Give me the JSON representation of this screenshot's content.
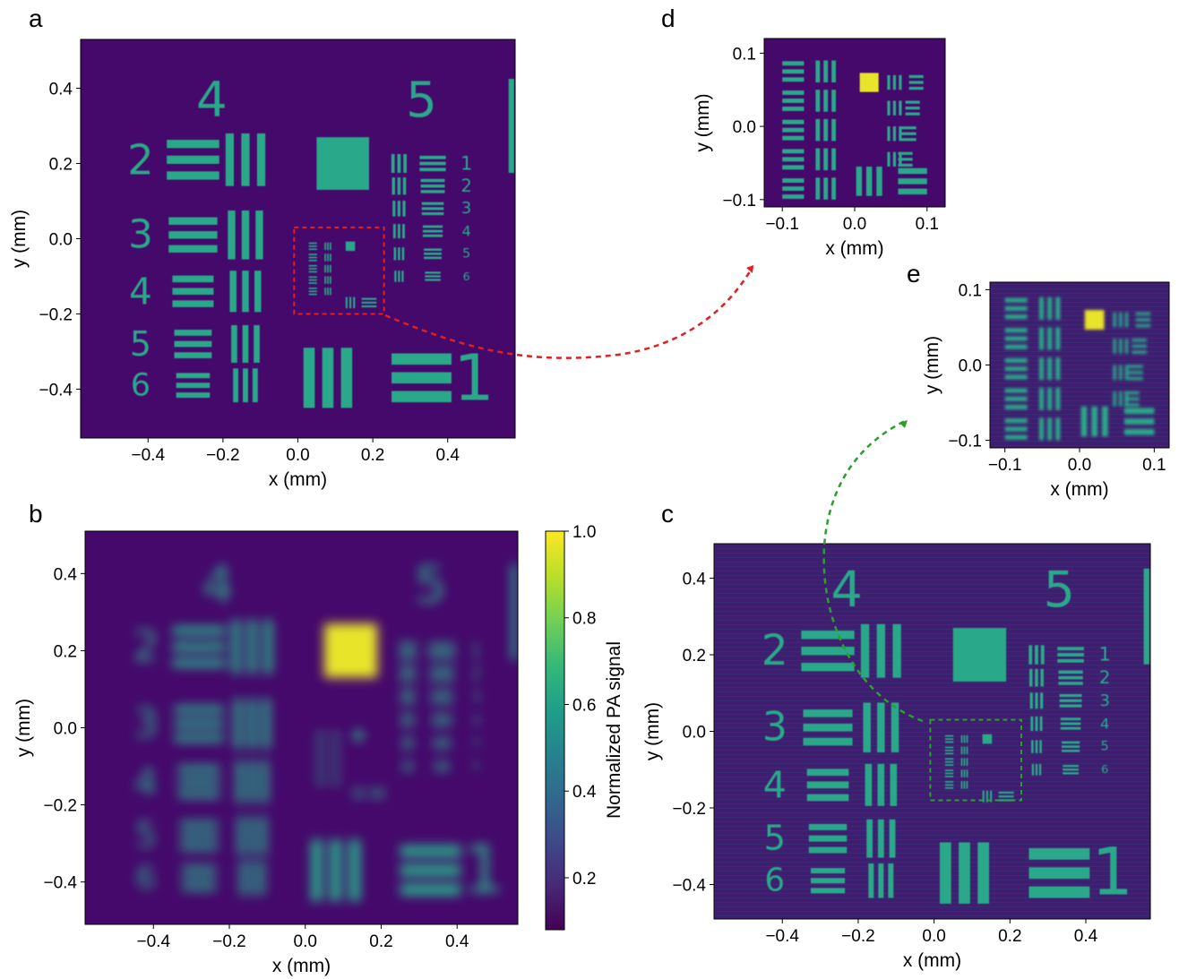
{
  "colors": {
    "background": "#45086b",
    "background_alt": "#3d1d6f",
    "bar_fill": "#2aa98a",
    "highlight": "#e8e429",
    "zoom_box_a": "#e02020",
    "zoom_box_c": "#2aa02a",
    "colormap": [
      "#440154",
      "#482878",
      "#3e4989",
      "#31688e",
      "#26828e",
      "#1f9e89",
      "#35b779",
      "#6ece58",
      "#b5de2b",
      "#fde725"
    ]
  },
  "target": {
    "group_labels": [
      "4",
      "5"
    ],
    "element_labels": [
      "1",
      "2",
      "3",
      "4",
      "5",
      "6"
    ]
  },
  "chart_data": [
    {
      "panel": "a",
      "type": "heatmap",
      "title": "",
      "xlabel": "x (mm)",
      "ylabel": "y (mm)",
      "xlim": [
        -0.58,
        0.58
      ],
      "ylim": [
        -0.53,
        0.53
      ],
      "xticks": [
        "−0.4",
        "−0.2",
        "0.0",
        "0.2",
        "0.4"
      ],
      "yticks": [
        "0.4",
        "0.2",
        "0.0",
        "−0.2",
        "−0.4"
      ],
      "zoom_box": {
        "x": [
          -0.01,
          0.23
        ],
        "y": [
          -0.2,
          0.03
        ]
      },
      "colorbar": null
    },
    {
      "panel": "b",
      "type": "heatmap",
      "title": "",
      "xlabel": "x (mm)",
      "ylabel": "y (mm)",
      "xlim": [
        -0.58,
        0.56
      ],
      "ylim": [
        -0.51,
        0.51
      ],
      "xticks": [
        "−0.4",
        "−0.2",
        "0.0",
        "0.2",
        "0.4"
      ],
      "yticks": [
        "0.4",
        "0.2",
        "0.0",
        "−0.2",
        "−0.4"
      ],
      "colorbar": {
        "label": "Normalized PA signal",
        "range": [
          0.08,
          1.0
        ],
        "ticks": [
          "1.0",
          "0.8",
          "0.6",
          "0.4",
          "0.2"
        ]
      }
    },
    {
      "panel": "c",
      "type": "heatmap",
      "title": "",
      "xlabel": "x (mm)",
      "ylabel": "y (mm)",
      "xlim": [
        -0.58,
        0.57
      ],
      "ylim": [
        -0.49,
        0.49
      ],
      "xticks": [
        "−0.4",
        "−0.2",
        "0.0",
        "0.2",
        "0.4"
      ],
      "yticks": [
        "0.4",
        "0.2",
        "0.0",
        "−0.2",
        "−0.4"
      ],
      "zoom_box": {
        "x": [
          -0.01,
          0.23
        ],
        "y": [
          -0.18,
          0.03
        ]
      },
      "colorbar": null
    },
    {
      "panel": "d",
      "type": "heatmap",
      "title": "",
      "xlabel": "x (mm)",
      "ylabel": "y (mm)",
      "xlim": [
        -0.125,
        0.125
      ],
      "ylim": [
        -0.11,
        0.12
      ],
      "xticks": [
        "−0.1",
        "0.0",
        "0.1"
      ],
      "yticks": [
        "0.1",
        "0.0",
        "−0.1"
      ],
      "colorbar": null
    },
    {
      "panel": "e",
      "type": "heatmap",
      "title": "",
      "xlabel": "x (mm)",
      "ylabel": "y (mm)",
      "xlim": [
        -0.12,
        0.12
      ],
      "ylim": [
        -0.11,
        0.11
      ],
      "xticks": [
        "−0.1",
        "0.0",
        "0.1"
      ],
      "yticks": [
        "0.1",
        "0.0",
        "−0.1"
      ],
      "colorbar": null
    }
  ]
}
